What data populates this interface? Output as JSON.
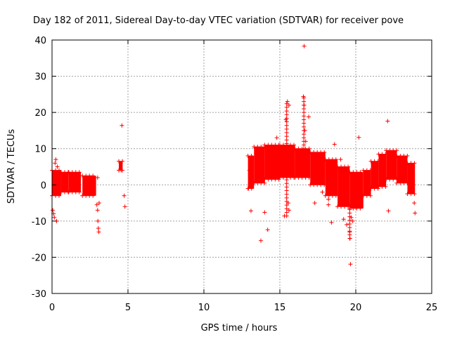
{
  "chart_data": {
    "type": "scatter",
    "title": "Day 182 of 2011, Sidereal Day-to-day VTEC variation (SDTVAR) for receiver pove",
    "xlabel": "GPS time / hours",
    "ylabel": "SDTVAR / TECUs",
    "xlim": [
      0,
      25
    ],
    "ylim": [
      -30,
      40
    ],
    "xticks": [
      0,
      5,
      10,
      15,
      20,
      25
    ],
    "yticks": [
      -30,
      -20,
      -10,
      0,
      10,
      20,
      30,
      40
    ],
    "grid": true,
    "marker": "+",
    "color": "#ff0000",
    "bands": [
      {
        "x0": 0.0,
        "x1": 0.6,
        "lo": -3.0,
        "hi": 4.0
      },
      {
        "x0": 0.6,
        "x1": 1.1,
        "lo": -2.0,
        "hi": 3.5
      },
      {
        "x0": 1.1,
        "x1": 1.9,
        "lo": -2.0,
        "hi": 3.5
      },
      {
        "x0": 2.0,
        "x1": 2.9,
        "lo": -3.0,
        "hi": 2.5
      },
      {
        "x0": 4.4,
        "x1": 4.65,
        "lo": 4.0,
        "hi": 6.5
      },
      {
        "x0": 12.9,
        "x1": 13.3,
        "lo": -1.0,
        "hi": 8.0
      },
      {
        "x0": 13.3,
        "x1": 14.0,
        "lo": 0.5,
        "hi": 10.5
      },
      {
        "x0": 14.0,
        "x1": 15.0,
        "lo": 1.5,
        "hi": 11.0
      },
      {
        "x0": 15.0,
        "x1": 16.0,
        "lo": 2.0,
        "hi": 11.0
      },
      {
        "x0": 16.0,
        "x1": 17.0,
        "lo": 2.0,
        "hi": 10.0
      },
      {
        "x0": 17.0,
        "x1": 18.0,
        "lo": 0.0,
        "hi": 9.0
      },
      {
        "x0": 18.0,
        "x1": 18.8,
        "lo": -3.0,
        "hi": 7.0
      },
      {
        "x0": 18.8,
        "x1": 19.6,
        "lo": -6.0,
        "hi": 5.0
      },
      {
        "x0": 19.6,
        "x1": 20.5,
        "lo": -6.5,
        "hi": 3.5
      },
      {
        "x0": 20.5,
        "x1": 21.0,
        "lo": -3.0,
        "hi": 4.0
      },
      {
        "x0": 21.0,
        "x1": 21.5,
        "lo": -1.0,
        "hi": 6.5
      },
      {
        "x0": 21.5,
        "x1": 22.0,
        "lo": -0.5,
        "hi": 8.5
      },
      {
        "x0": 22.0,
        "x1": 22.7,
        "lo": 1.5,
        "hi": 9.5
      },
      {
        "x0": 22.7,
        "x1": 23.4,
        "lo": 0.5,
        "hi": 8.0
      },
      {
        "x0": 23.4,
        "x1": 23.9,
        "lo": -2.5,
        "hi": 6.0
      }
    ],
    "points": [
      [
        0.05,
        -7
      ],
      [
        0.1,
        -8
      ],
      [
        0.15,
        -9
      ],
      [
        0.2,
        6
      ],
      [
        0.25,
        7
      ],
      [
        0.3,
        -10
      ],
      [
        0.35,
        5
      ],
      [
        2.95,
        -5.5
      ],
      [
        3.0,
        -7
      ],
      [
        3.02,
        -10
      ],
      [
        3.05,
        -12
      ],
      [
        3.08,
        -13
      ],
      [
        3.1,
        -5
      ],
      [
        3.0,
        2
      ],
      [
        4.6,
        16.4
      ],
      [
        4.75,
        -3
      ],
      [
        4.8,
        -6
      ],
      [
        4.55,
        4
      ],
      [
        12.95,
        -1
      ],
      [
        13.0,
        4
      ],
      [
        13.1,
        -7.2
      ],
      [
        13.5,
        3
      ],
      [
        13.75,
        -15.4
      ],
      [
        14.0,
        -7.6
      ],
      [
        14.2,
        -12.4
      ],
      [
        14.8,
        13
      ],
      [
        15.3,
        -8.6
      ],
      [
        15.4,
        18
      ],
      [
        15.5,
        23
      ],
      [
        15.6,
        22
      ],
      [
        15.45,
        10
      ],
      [
        15.55,
        -5
      ],
      [
        15.6,
        -7
      ],
      [
        16.6,
        38.3
      ],
      [
        16.55,
        24.4
      ],
      [
        16.6,
        22
      ],
      [
        16.65,
        15
      ],
      [
        16.7,
        12
      ],
      [
        16.9,
        18.8
      ],
      [
        17.3,
        -5
      ],
      [
        17.8,
        -2
      ],
      [
        18.2,
        -4
      ],
      [
        18.2,
        -5.5
      ],
      [
        18.4,
        -10.4
      ],
      [
        18.6,
        11.2
      ],
      [
        19.0,
        7
      ],
      [
        19.2,
        -9.5
      ],
      [
        19.4,
        -11
      ],
      [
        19.6,
        -13
      ],
      [
        19.62,
        -14.8
      ],
      [
        19.65,
        -21.9
      ],
      [
        19.7,
        -9
      ],
      [
        19.8,
        -10
      ],
      [
        20.2,
        13.1
      ],
      [
        20.3,
        -5
      ],
      [
        22.1,
        17.6
      ],
      [
        22.15,
        -7.2
      ],
      [
        23.9,
        -7.8
      ],
      [
        23.85,
        -5
      ]
    ],
    "spikes": [
      {
        "x": 15.45,
        "lo": -8.6,
        "hi": 23.0
      },
      {
        "x": 16.58,
        "lo": 5.0,
        "hi": 24.4
      },
      {
        "x": 19.6,
        "lo": -14.8,
        "hi": -5.0
      }
    ]
  }
}
